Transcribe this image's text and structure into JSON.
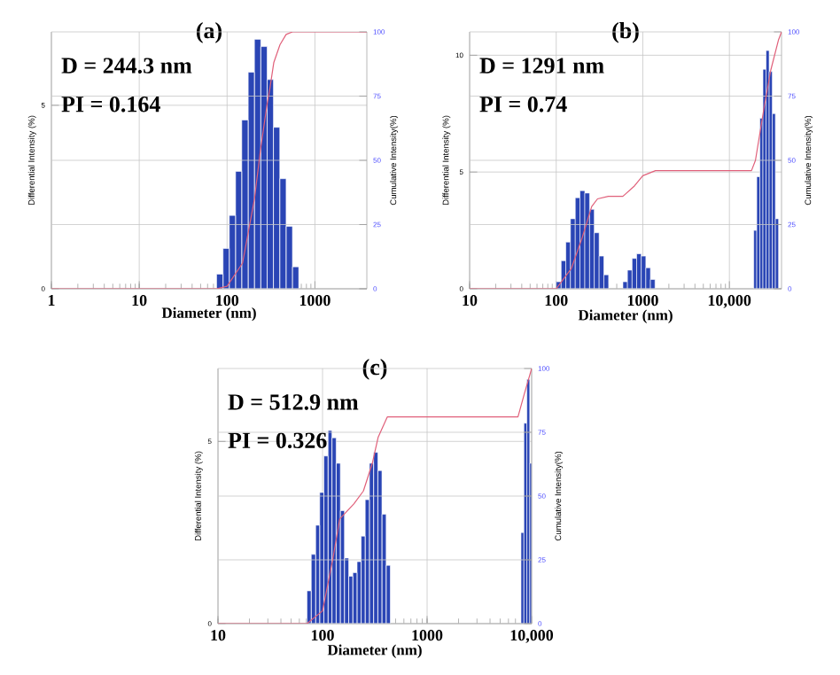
{
  "chart_data": [
    {
      "type": "histogram",
      "title": "(a)",
      "xlabel": "Diameter (nm)",
      "ylabel": "Differential Intensity (%)",
      "y2label": "Cumulative Intensity(%)",
      "annotations": [
        "D = 244.3 nm",
        "PI = 0.164"
      ],
      "log": "x",
      "grid": true,
      "xlim": [
        1,
        3900
      ],
      "xticks": [
        1,
        10,
        100,
        1000
      ],
      "ylim": [
        0,
        7
      ],
      "yticks": [
        0,
        5
      ],
      "y2lim": [
        0,
        100
      ],
      "y2ticks": [
        0,
        25,
        50,
        75,
        100
      ],
      "series": [
        {
          "color": "#2a45b5",
          "bins": [
            76,
            90,
            106,
            125,
            147,
            174,
            205,
            242,
            286,
            337,
            398,
            470,
            555,
            655
          ],
          "values": [
            0.4,
            1.1,
            2.0,
            3.2,
            4.6,
            5.9,
            6.8,
            6.6,
            5.7,
            4.4,
            3.0,
            1.7,
            0.6
          ]
        },
        {
          "type": "line",
          "axis": "y2",
          "color": "#e0607a",
          "x": [
            1,
            76,
            100,
            150,
            205,
            242,
            286,
            307,
            340,
            400,
            470,
            555,
            3900
          ],
          "values": [
            0,
            0,
            1,
            10,
            35,
            55,
            72,
            78,
            88,
            95,
            99,
            100,
            100
          ]
        }
      ]
    },
    {
      "type": "histogram",
      "title": "(b)",
      "xlabel": "Diameter (nm)",
      "ylabel": "Differential Intensity (%)",
      "y2label": "Cumulative Intensity(%)",
      "annotations": [
        "D = 1291 nm",
        "PI = 0.74"
      ],
      "log": "x",
      "grid": true,
      "xlim": [
        10,
        40000
      ],
      "xticks": [
        10,
        100,
        1000,
        {
          "value": 10000,
          "label": "10,000"
        }
      ],
      "ylim": [
        0,
        11
      ],
      "yticks": [
        0,
        5,
        10
      ],
      "y2lim": [
        0,
        100
      ],
      "y2ticks": [
        0,
        25,
        50,
        75,
        100
      ],
      "series": [
        {
          "color": "#2a45b5",
          "bins": [
            100,
            114,
            129,
            146,
            166,
            188,
            214,
            243,
            275,
            313,
            355,
            403,
            589,
            665,
            752,
            849,
            959,
            1084,
            1225,
            1384,
            19100,
            20700,
            22500,
            24400,
            26500,
            28800,
            31300,
            34000,
            37000
          ],
          "values": [
            0.3,
            1.2,
            2.0,
            3.0,
            3.9,
            4.2,
            4.1,
            3.4,
            2.4,
            1.4,
            0.6,
            null,
            0.3,
            0.8,
            1.3,
            1.5,
            1.4,
            0.9,
            0.4,
            null,
            2.5,
            4.8,
            7.3,
            9.4,
            10.2,
            9.3,
            7.5,
            3.0
          ]
        },
        {
          "type": "line",
          "axis": "y2",
          "color": "#e0607a",
          "x": [
            10,
            100,
            150,
            200,
            257,
            300,
            400,
            589,
            800,
            1000,
            1400,
            18000,
            20000,
            25000,
            30000,
            37000,
            40000
          ],
          "values": [
            0,
            0,
            8,
            20,
            32,
            35,
            36,
            36,
            40,
            44,
            46,
            46,
            50,
            70,
            85,
            97,
            100
          ]
        }
      ]
    },
    {
      "type": "histogram",
      "title": "(c)",
      "xlabel": "Diameter (nm)",
      "ylabel": "Differential Intensity (%)",
      "y2label": "Cumulative Intensity(%)",
      "annotations": [
        "D = 512.9 nm",
        "PI = 0.326"
      ],
      "log": "x",
      "grid": true,
      "xlim": [
        10,
        10000
      ],
      "xticks": [
        10,
        100,
        1000,
        {
          "value": 10000,
          "label": "10,000"
        }
      ],
      "ylim": [
        0,
        7
      ],
      "yticks": [
        0,
        5
      ],
      "y2lim": [
        0,
        100
      ],
      "y2ticks": [
        0,
        25,
        50,
        75,
        100
      ],
      "series": [
        {
          "color": "#2a45b5",
          "bins": [
            71,
            78,
            86,
            94,
            103,
            113,
            123,
            135,
            148,
            162,
            178,
            195,
            214,
            234,
            256,
            281,
            308,
            338,
            370,
            406,
            445,
            7910,
            8430,
            9000,
            9590,
            10000
          ],
          "values": [
            0.9,
            1.9,
            2.7,
            3.6,
            4.6,
            5.3,
            5.1,
            4.4,
            3.1,
            1.8,
            1.3,
            1.4,
            1.7,
            2.4,
            3.4,
            4.4,
            4.7,
            4.2,
            3.0,
            1.6,
            null,
            2.5,
            5.5,
            6.7,
            4.4
          ]
        },
        {
          "type": "line",
          "axis": "y2",
          "color": "#e0607a",
          "x": [
            10,
            71,
            100,
            125,
            146,
            200,
            246,
            300,
            340,
            416,
            7400,
            8500,
            10000
          ],
          "values": [
            0,
            0,
            5,
            25,
            41,
            47,
            52,
            63,
            73,
            81,
            81,
            90,
            100
          ]
        }
      ]
    }
  ]
}
